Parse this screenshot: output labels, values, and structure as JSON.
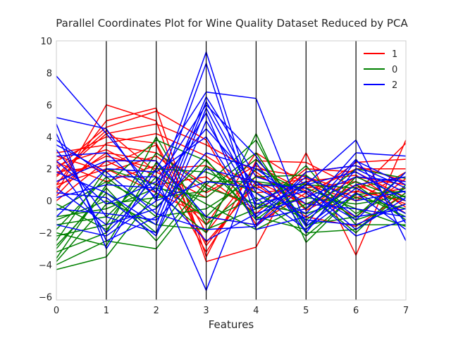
{
  "chart_data": {
    "type": "line",
    "title": "Parallel Coordinates Plot for Wine Quality Dataset Reduced by PCA",
    "xlabel": "Features",
    "ylabel": "",
    "x": [
      0,
      1,
      2,
      3,
      4,
      5,
      6,
      7
    ],
    "xlim": [
      0,
      7
    ],
    "ylim": [
      -6.2,
      10
    ],
    "xticks": [
      "0",
      "1",
      "2",
      "3",
      "4",
      "5",
      "6",
      "7"
    ],
    "yticks": [
      "10",
      "8",
      "6",
      "4",
      "2",
      "0",
      "−2",
      "−4",
      "−6"
    ],
    "ytick_values": [
      10,
      8,
      6,
      4,
      2,
      0,
      -2,
      -4,
      -6
    ],
    "legend_position": "top-right",
    "grid": false,
    "series": [
      {
        "name": "1",
        "color": "#ff0000",
        "lines": [
          [
            0.5,
            6.0,
            5.0,
            -3.8,
            -2.9,
            3.0,
            -3.4,
            3.8
          ],
          [
            1.0,
            5.0,
            5.8,
            -3.5,
            2.5,
            2.4,
            0.8,
            1.5
          ],
          [
            2.0,
            4.6,
            5.6,
            3.8,
            -1.5,
            0.5,
            2.0,
            2.0
          ],
          [
            1.5,
            4.2,
            4.8,
            3.5,
            1.8,
            -0.5,
            1.5,
            1.0
          ],
          [
            2.5,
            4.0,
            3.6,
            -2.0,
            2.0,
            1.5,
            0.5,
            3.6
          ],
          [
            3.0,
            3.5,
            3.0,
            1.0,
            -0.5,
            2.0,
            1.8,
            0.2
          ],
          [
            0.8,
            3.0,
            2.5,
            -2.6,
            1.0,
            -1.0,
            -1.6,
            0.5
          ],
          [
            1.2,
            2.8,
            2.0,
            2.2,
            0.5,
            0.8,
            1.2,
            -0.8
          ],
          [
            2.2,
            3.2,
            1.5,
            -1.5,
            3.0,
            1.0,
            0.0,
            1.8
          ],
          [
            0.0,
            2.5,
            1.0,
            1.5,
            -0.8,
            1.8,
            2.2,
            1.2
          ],
          [
            1.8,
            2.2,
            3.5,
            -2.8,
            1.2,
            -0.2,
            0.6,
            0.0
          ],
          [
            2.8,
            1.8,
            2.8,
            0.5,
            2.2,
            0.6,
            -1.0,
            1.4
          ],
          [
            1.0,
            2.0,
            0.5,
            -1.0,
            -1.5,
            1.2,
            1.6,
            -0.4
          ],
          [
            0.3,
            3.6,
            4.2,
            2.8,
            0.8,
            1.4,
            0.2,
            0.8
          ],
          [
            2.4,
            1.2,
            2.2,
            -3.2,
            1.6,
            0.2,
            2.4,
            2.6
          ],
          [
            1.6,
            4.4,
            1.8,
            0.2,
            2.6,
            -0.6,
            1.0,
            -0.2
          ]
        ]
      },
      {
        "name": "0",
        "color": "#008000",
        "lines": [
          [
            -4.3,
            -3.5,
            0.5,
            -2.0,
            4.2,
            -2.6,
            0.5,
            -1.0
          ],
          [
            -4.0,
            -2.5,
            -3.0,
            1.0,
            3.8,
            -2.0,
            -1.8,
            0.5
          ],
          [
            -3.6,
            1.0,
            3.8,
            2.5,
            -0.5,
            2.2,
            -1.5,
            -1.5
          ],
          [
            -3.2,
            -2.0,
            4.0,
            -1.5,
            1.0,
            1.0,
            0.8,
            -0.8
          ],
          [
            -2.8,
            0.5,
            -2.0,
            2.2,
            -1.0,
            -1.8,
            1.5,
            0.2
          ],
          [
            -2.5,
            2.0,
            1.0,
            -1.0,
            2.0,
            0.5,
            -2.0,
            1.0
          ],
          [
            -2.2,
            -1.5,
            3.0,
            0.8,
            -0.2,
            -0.8,
            0.2,
            -0.5
          ],
          [
            -1.8,
            1.5,
            -1.0,
            -0.5,
            1.5,
            1.6,
            -0.8,
            0.8
          ],
          [
            -1.5,
            -1.0,
            2.0,
            1.8,
            0.5,
            -1.2,
            1.0,
            -1.2
          ],
          [
            -1.2,
            0.0,
            -1.5,
            -1.8,
            -0.5,
            0.2,
            -0.2,
            0.3
          ],
          [
            -1.0,
            -0.5,
            0.8,
            0.2,
            2.6,
            -0.5,
            2.0,
            1.4
          ],
          [
            -0.6,
            1.2,
            -0.4,
            2.6,
            -1.2,
            1.2,
            -1.2,
            -0.2
          ],
          [
            -2.0,
            -2.8,
            2.4,
            -1.2,
            0.2,
            -2.2,
            0.4,
            0.6
          ],
          [
            -3.0,
            0.8,
            -2.5,
            1.2,
            1.2,
            0.8,
            -0.5,
            -1.6
          ],
          [
            -0.2,
            -1.8,
            1.5,
            -0.2,
            -1.8,
            -0.2,
            1.2,
            0.0
          ],
          [
            -3.8,
            -0.2,
            0.2,
            0.6,
            3.0,
            -1.5,
            -1.0,
            1.8
          ]
        ]
      },
      {
        "name": "2",
        "color": "#0000ff",
        "lines": [
          [
            7.8,
            4.2,
            0.5,
            9.3,
            -0.5,
            1.0,
            3.8,
            -2.5
          ],
          [
            5.2,
            4.5,
            0.0,
            8.6,
            -1.2,
            -0.5,
            3.0,
            2.8
          ],
          [
            4.8,
            -3.0,
            2.0,
            6.8,
            6.4,
            -1.5,
            2.5,
            1.0
          ],
          [
            4.2,
            -2.5,
            -1.0,
            6.5,
            1.5,
            0.5,
            -2.2,
            -1.2
          ],
          [
            3.8,
            1.5,
            1.5,
            -5.6,
            2.4,
            -2.0,
            2.0,
            0.5
          ],
          [
            3.2,
            -1.0,
            -2.0,
            5.8,
            0.0,
            1.2,
            -1.0,
            -0.5
          ],
          [
            2.8,
            3.0,
            0.2,
            5.5,
            -1.8,
            -1.0,
            1.0,
            1.5
          ],
          [
            2.2,
            -2.0,
            1.0,
            4.5,
            1.0,
            0.8,
            -1.8,
            0.2
          ],
          [
            1.8,
            0.5,
            -1.5,
            6.2,
            0.5,
            -1.8,
            0.5,
            -1.8
          ],
          [
            1.2,
            2.5,
            2.5,
            -1.0,
            -1.5,
            1.8,
            2.2,
            0.8
          ],
          [
            0.8,
            -1.5,
            -0.5,
            3.0,
            2.0,
            -0.2,
            -0.5,
            -1.0
          ],
          [
            0.2,
            1.0,
            0.8,
            -2.5,
            -0.8,
            0.2,
            1.5,
            1.2
          ],
          [
            -0.5,
            -0.8,
            -1.2,
            2.0,
            1.2,
            -1.2,
            -1.5,
            -0.2
          ],
          [
            -1.0,
            2.0,
            1.8,
            4.0,
            -1.0,
            1.5,
            0.0,
            0.6
          ],
          [
            -1.5,
            -2.2,
            0.0,
            1.2,
            0.8,
            -0.8,
            2.6,
            -1.4
          ],
          [
            0.5,
            0.2,
            -2.2,
            5.0,
            -0.2,
            0.6,
            -1.2,
            1.8
          ],
          [
            2.5,
            -0.2,
            1.2,
            6.0,
            2.8,
            -1.6,
            0.8,
            -0.8
          ],
          [
            3.5,
            1.8,
            -0.8,
            -1.8,
            -1.6,
            1.0,
            1.8,
            0.0
          ]
        ]
      }
    ]
  }
}
